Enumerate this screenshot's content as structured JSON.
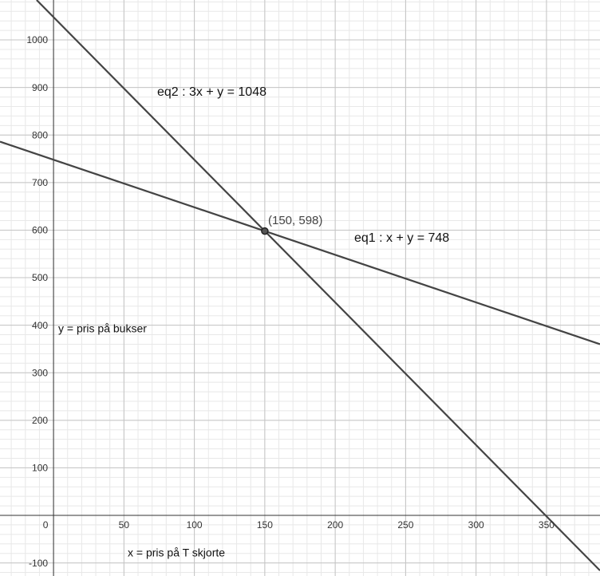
{
  "chart_data": {
    "type": "line",
    "xlim": [
      -38,
      388
    ],
    "ylim": [
      -127.5,
      1084
    ],
    "xticks": [
      0,
      50,
      100,
      150,
      200,
      250,
      300,
      350
    ],
    "yticks": [
      -100,
      100,
      200,
      300,
      400,
      500,
      600,
      700,
      800,
      900,
      1000
    ],
    "grid": true,
    "series": [
      {
        "name": "eq1 : x + y = 748",
        "color": "#444444",
        "x": [
          -38,
          388
        ],
        "values": [
          786,
          360
        ]
      },
      {
        "name": "eq2 : 3x + y = 1048",
        "color": "#444444",
        "x": [
          -12,
          388
        ],
        "values": [
          1084,
          -116
        ]
      }
    ],
    "point": {
      "x": 150,
      "y": 598,
      "label": "(150, 598)"
    },
    "ylabel": "y = pris på bukser",
    "xlabel": "x = pris på T skjorte"
  }
}
